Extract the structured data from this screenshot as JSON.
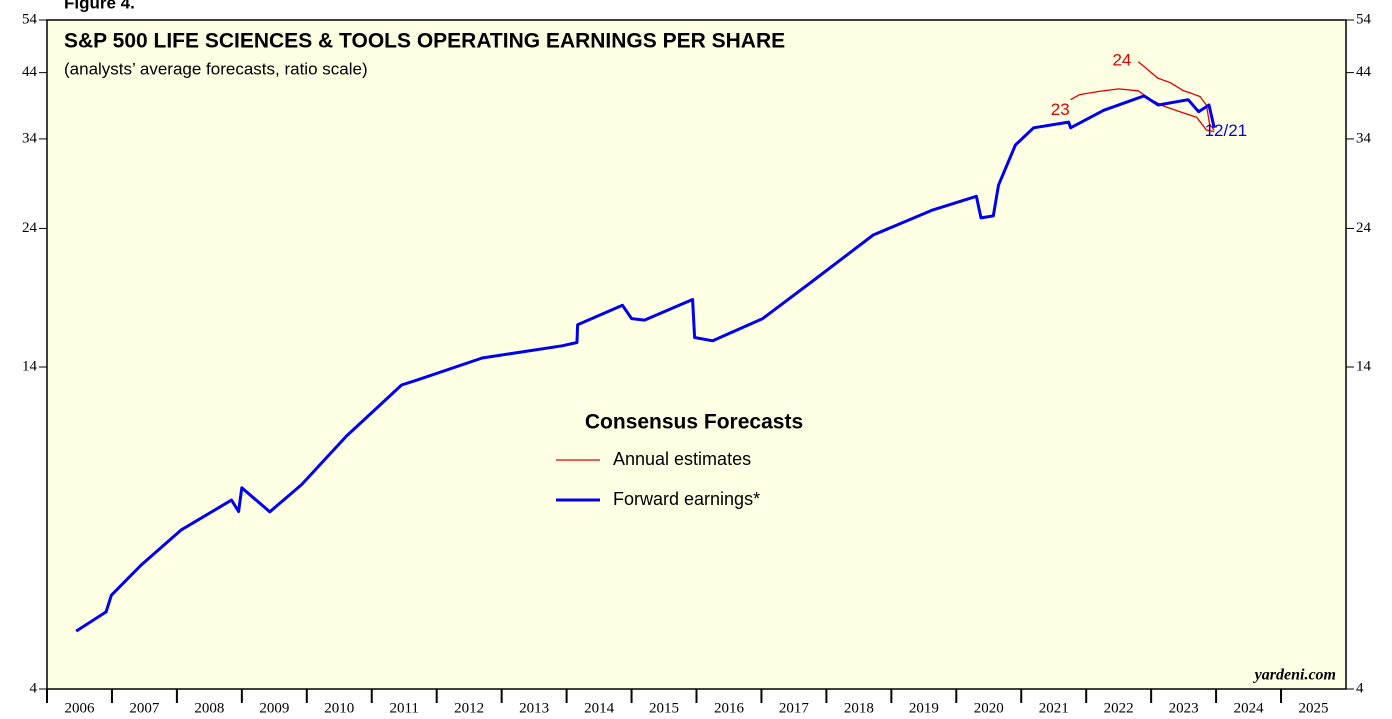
{
  "chart_data": {
    "type": "line",
    "figure_label": "Figure 4.",
    "title": "S&P 500 LIFE SCIENCES & TOOLS OPERATING EARNINGS PER SHARE",
    "subtitle": "(analysts’ average forecasts, ratio scale)",
    "legend_title": "Consensus Forecasts",
    "source": "yardeni.com",
    "log_scale": true,
    "ylim": [
      4,
      54
    ],
    "yticks": [
      4,
      14,
      24,
      34,
      44,
      54
    ],
    "xlim": [
      2006,
      2026
    ],
    "xticks": [
      2006,
      2007,
      2008,
      2009,
      2010,
      2011,
      2012,
      2013,
      2014,
      2015,
      2016,
      2017,
      2018,
      2019,
      2020,
      2021,
      2022,
      2023,
      2024,
      2025
    ],
    "series": [
      {
        "name": "Annual estimates",
        "color": "#e00000",
        "width": 1.3,
        "x": [
          2021.76,
          2021.9,
          2022.2,
          2022.5,
          2022.8,
          2023.0,
          2023.2,
          2023.5,
          2023.7,
          2023.85,
          2023.97
        ],
        "values": [
          39.6,
          40.4,
          40.9,
          41.3,
          41.0,
          39.6,
          38.6,
          37.6,
          37.0,
          35.2,
          35.0
        ]
      },
      {
        "name": "Annual estimates",
        "color": "#e00000",
        "width": 1.3,
        "x": [
          2022.8,
          2022.95,
          2023.1,
          2023.3,
          2023.5,
          2023.62,
          2023.75,
          2023.85,
          2023.9,
          2023.97
        ],
        "values": [
          45.9,
          44.5,
          43.1,
          42.3,
          41.0,
          40.6,
          40.1,
          38.8,
          36.0,
          35.2
        ]
      },
      {
        "name": "Forward earnings*",
        "color": "#0000ee",
        "width": 3,
        "x": [
          2006.45,
          2006.91,
          2006.99,
          2007.45,
          2008.07,
          2008.84,
          2008.95,
          2009.0,
          2009.43,
          2009.92,
          2010.61,
          2011.46,
          2011.69,
          2012.7,
          2013.93,
          2014.16,
          2014.17,
          2014.86,
          2015.0,
          2015.2,
          2015.94,
          2015.97,
          2016.25,
          2017.02,
          2017.8,
          2018.72,
          2019.64,
          2020.31,
          2020.38,
          2020.57,
          2020.65,
          2020.91,
          2021.19,
          2021.73,
          2021.76,
          2022.27,
          2022.89,
          2023.11,
          2023.57,
          2023.73,
          2023.89,
          2023.97
        ],
        "values": [
          5.01,
          5.4,
          5.76,
          6.48,
          7.43,
          8.34,
          7.98,
          8.75,
          7.97,
          8.86,
          10.7,
          13.05,
          13.3,
          14.5,
          15.2,
          15.4,
          16.5,
          17.8,
          16.9,
          16.8,
          18.2,
          15.7,
          15.5,
          16.9,
          19.6,
          23.4,
          25.8,
          27.2,
          25.0,
          25.2,
          28.4,
          33.2,
          35.5,
          36.3,
          35.5,
          38.0,
          40.2,
          38.8,
          39.6,
          37.8,
          38.8,
          35.5
        ]
      }
    ],
    "annotations": [
      {
        "text": "23",
        "x": 2021.6,
        "y": 38.0,
        "color": "#e00000"
      },
      {
        "text": "24",
        "x": 2022.55,
        "y": 46.0,
        "color": "#e00000"
      },
      {
        "text": "12/21",
        "x": 2024.15,
        "y": 35.0,
        "color": "#0000ee"
      }
    ]
  }
}
